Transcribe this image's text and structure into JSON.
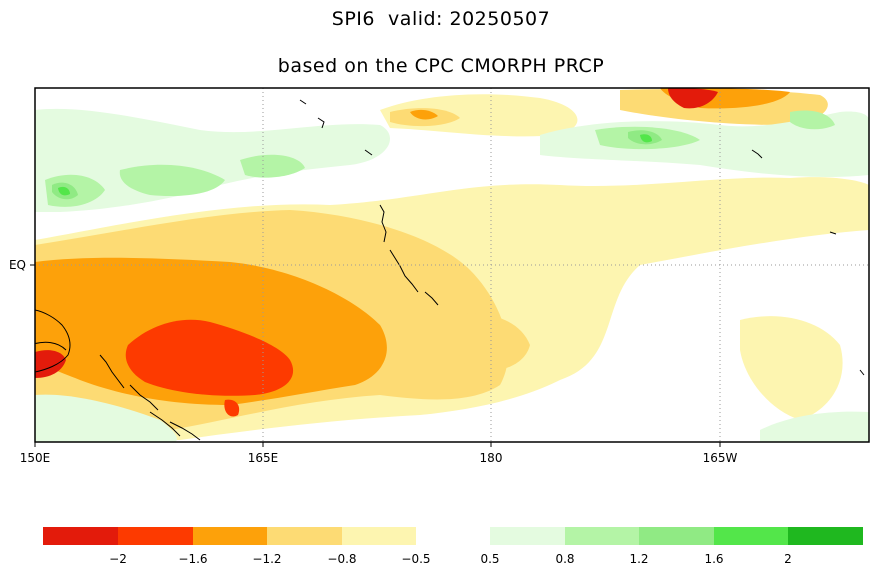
{
  "title": {
    "line1": "SPI6  valid: 20250507",
    "line2": "based on the CPC CMORPH PRCP"
  },
  "map": {
    "x_axis_labels": [
      "150E",
      "165E",
      "180",
      "165W"
    ],
    "y_axis_labels": [
      "EQ"
    ],
    "gridlines": "dotted"
  },
  "colorbar": {
    "negative": {
      "colors": [
        "#e31b0b",
        "#fd3a00",
        "#fda10a",
        "#fddb74",
        "#fdf5b0"
      ],
      "tick_labels": [
        "−2",
        "−1.6",
        "−1.2",
        "−0.8",
        "−0.5"
      ]
    },
    "positive": {
      "colors": [
        "#e4fbe0",
        "#b4f4a6",
        "#90ea84",
        "#53e64a",
        "#1fb81f"
      ],
      "tick_labels": [
        "0.5",
        "0.8",
        "1.2",
        "1.6",
        "2"
      ]
    }
  },
  "colors": {
    "frame": "#000000",
    "grid": "#aaaaaa",
    "coastline": "#000000"
  }
}
